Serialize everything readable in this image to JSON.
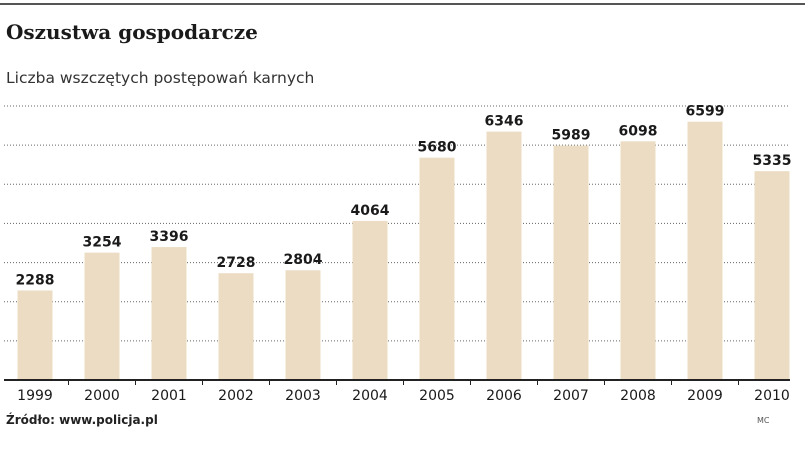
{
  "title": "Oszustwa gospodarcze",
  "subtitle": "Liczba wszczętych postępowań karnych",
  "source": "Źródło: www.policja.pl",
  "credit": "MC",
  "colors": {
    "bar": "#ecdcc3",
    "grid": "#666666",
    "axis": "#222222",
    "text": "#1a1a1a"
  },
  "chart_data": {
    "type": "bar",
    "title": "Oszustwa gospodarcze",
    "subtitle": "Liczba wszczętych postępowań karnych",
    "categories": [
      "1999",
      "2000",
      "2001",
      "2002",
      "2003",
      "2004",
      "2005",
      "2006",
      "2007",
      "2008",
      "2009",
      "2010"
    ],
    "values": [
      2288,
      3254,
      3396,
      2728,
      2804,
      4064,
      5680,
      6346,
      5989,
      6098,
      6599,
      5335
    ],
    "value_labels": [
      "2288",
      "3254",
      "3396",
      "2728",
      "2804",
      "4064",
      "5680",
      "6346",
      "5989",
      "6098",
      "6599",
      "5335"
    ],
    "ylim": [
      0,
      7000
    ],
    "grid": true,
    "xlabel": "",
    "ylabel": ""
  }
}
